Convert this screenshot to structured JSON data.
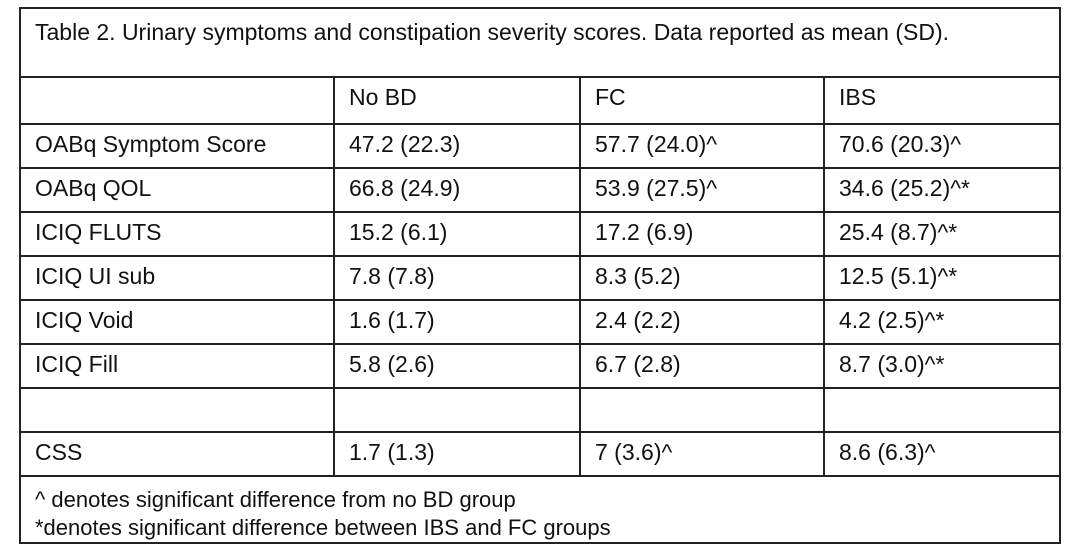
{
  "caption": "Table 2. Urinary symptoms and constipation severity scores. Data reported as mean (SD).",
  "header": [
    "",
    "No BD",
    "FC",
    "IBS"
  ],
  "rows": [
    [
      "OABq Symptom Score",
      "47.2 (22.3)",
      "57.7 (24.0)^",
      "70.6 (20.3)^"
    ],
    [
      "OABq QOL",
      "66.8 (24.9)",
      "53.9 (27.5)^",
      "34.6 (25.2)^*"
    ],
    [
      "ICIQ FLUTS",
      "15.2 (6.1)",
      "17.2 (6.9)",
      "25.4 (8.7)^*"
    ],
    [
      "ICIQ UI sub",
      "7.8 (7.8)",
      "8.3 (5.2)",
      "12.5 (5.1)^*"
    ],
    [
      "ICIQ Void",
      "1.6 (1.7)",
      "2.4 (2.2)",
      "4.2 (2.5)^*"
    ],
    [
      "ICIQ Fill",
      "5.8 (2.6)",
      "6.7 (2.8)",
      "8.7 (3.0)^*"
    ],
    [
      "",
      "",
      "",
      ""
    ],
    [
      "CSS",
      "1.7 (1.3)",
      "7 (3.6)^",
      "8.6 (6.3)^"
    ]
  ],
  "footnotes": [
    "^ denotes significant difference from no BD group",
    "*denotes significant difference between IBS and FC groups"
  ]
}
